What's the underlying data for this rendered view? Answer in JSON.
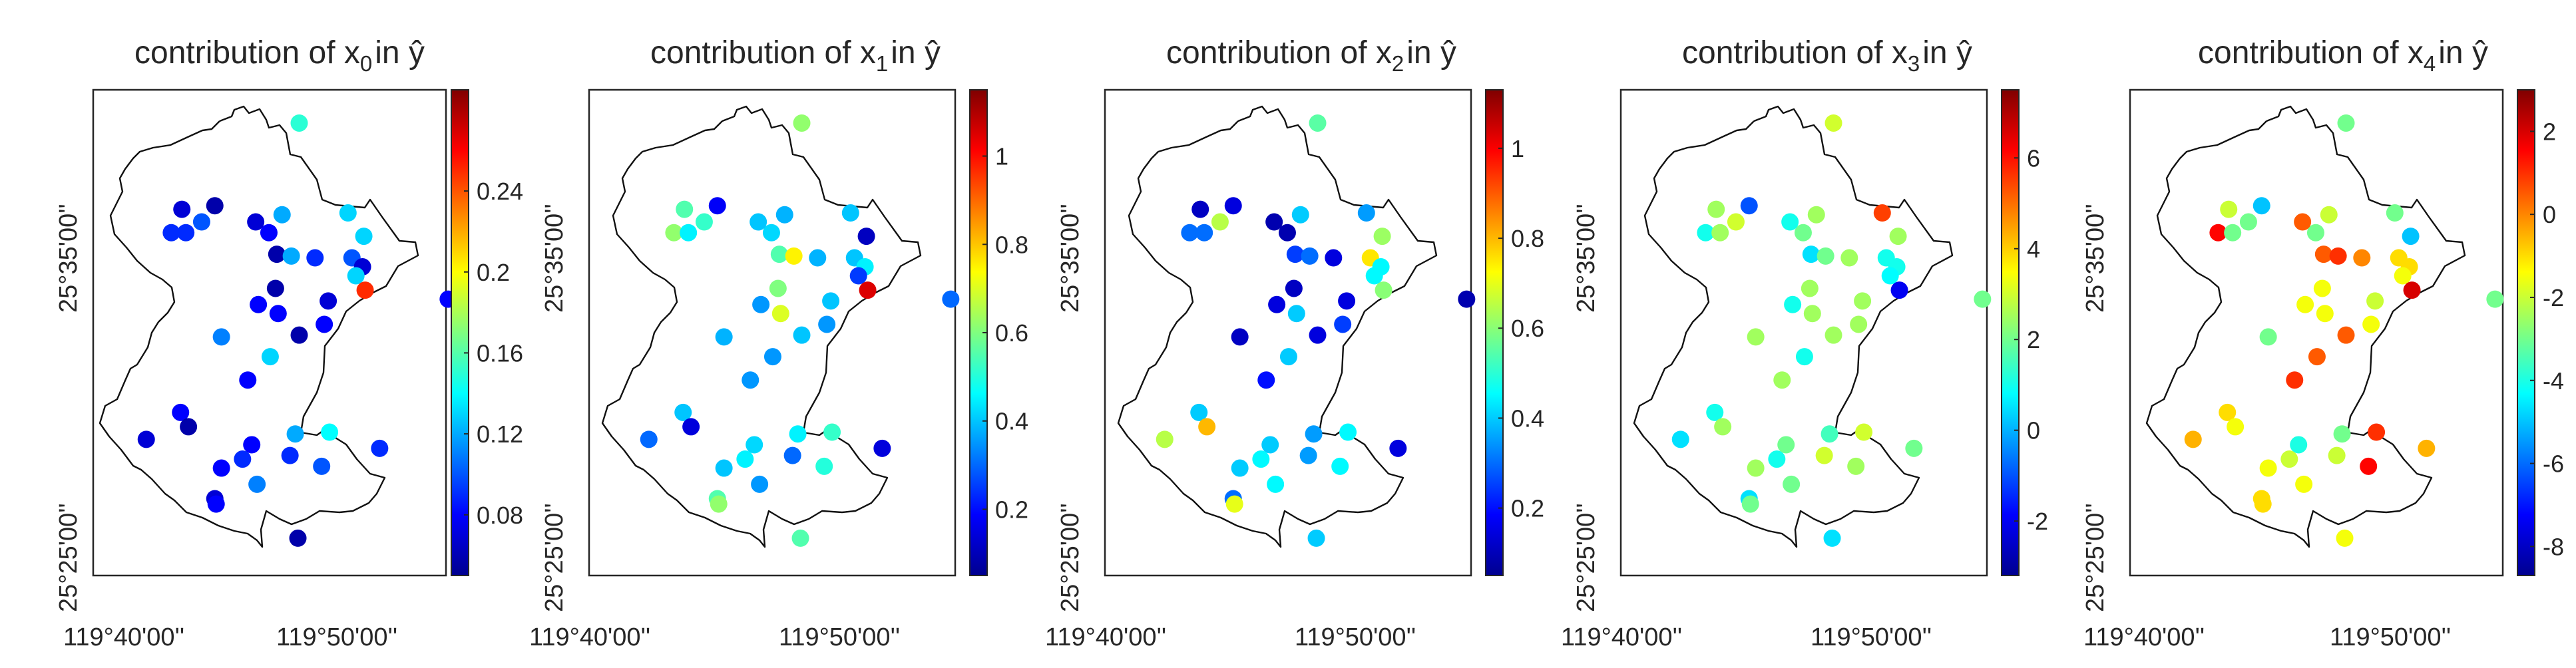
{
  "figure_type": "scatter-map",
  "chart_data": [
    {
      "type": "scatter",
      "title": {
        "prefix": "contribution of x",
        "subscript": "0",
        "suffix": "in ŷ"
      },
      "xticks": [
        "119°40'00''",
        "119°50'00''"
      ],
      "yticks": [
        "25°25'00''",
        "25°35'00''"
      ],
      "colorbar": {
        "min": 0.05,
        "max": 0.29,
        "ticks": [
          "0.08",
          "0.12",
          "0.16",
          "0.2",
          "0.24"
        ],
        "tick_values": [
          0.08,
          0.12,
          0.16,
          0.2,
          0.24
        ]
      },
      "points": {
        "lon": [
          119.775,
          119.701,
          119.711,
          119.678,
          119.686,
          119.689,
          119.762,
          119.812,
          119.752,
          119.824,
          119.742,
          119.758,
          119.769,
          119.787,
          119.815,
          119.823,
          119.818,
          119.825,
          119.888,
          119.757,
          119.744,
          119.716,
          119.759,
          119.775,
          119.794,
          119.797,
          119.753,
          119.736,
          119.685,
          119.691,
          119.659,
          119.739,
          119.732,
          119.772,
          119.716,
          119.711,
          119.798,
          119.792,
          119.836,
          119.768,
          119.743,
          119.774,
          119.712
        ],
        "lat": [
          25.637,
          25.582,
          25.591,
          25.576,
          25.589,
          25.576,
          25.586,
          25.587,
          25.576,
          25.574,
          25.582,
          25.564,
          25.563,
          25.562,
          25.562,
          25.557,
          25.552,
          25.544,
          25.539,
          25.545,
          25.536,
          25.518,
          25.531,
          25.519,
          25.525,
          25.538,
          25.507,
          25.494,
          25.476,
          25.468,
          25.461,
          25.458,
          25.45,
          25.464,
          25.445,
          25.428,
          25.465,
          25.446,
          25.456,
          25.452,
          25.436,
          25.406,
          25.425
        ],
        "values": [
          0.15,
          0.1,
          0.06,
          0.09,
          0.07,
          0.09,
          0.12,
          0.13,
          0.08,
          0.13,
          0.07,
          0.06,
          0.12,
          0.09,
          0.1,
          0.07,
          0.13,
          0.25,
          0.08,
          0.06,
          0.08,
          0.11,
          0.08,
          0.06,
          0.08,
          0.07,
          0.13,
          0.08,
          0.08,
          0.06,
          0.07,
          0.08,
          0.09,
          0.12,
          0.08,
          0.07,
          0.14,
          0.1,
          0.09,
          0.09,
          0.11,
          0.06,
          0.08
        ]
      }
    },
    {
      "type": "scatter",
      "title": {
        "prefix": "contribution of x",
        "subscript": "1",
        "suffix": "in ŷ"
      },
      "xticks": [
        "119°40'00''",
        "119°50'00''"
      ],
      "yticks": [
        "25°25'00''",
        "25°35'00''"
      ],
      "colorbar": {
        "min": 0.05,
        "max": 1.15,
        "ticks": [
          "0.2",
          "0.4",
          "0.6",
          "0.8",
          "1"
        ],
        "tick_values": [
          0.2,
          0.4,
          0.6,
          0.8,
          1.0
        ]
      },
      "points": {
        "lon": [
          119.775,
          119.701,
          119.711,
          119.678,
          119.686,
          119.689,
          119.762,
          119.812,
          119.752,
          119.824,
          119.742,
          119.758,
          119.769,
          119.787,
          119.815,
          119.823,
          119.818,
          119.825,
          119.888,
          119.757,
          119.744,
          119.716,
          119.759,
          119.775,
          119.794,
          119.797,
          119.753,
          119.736,
          119.685,
          119.691,
          119.659,
          119.739,
          119.732,
          119.772,
          119.716,
          119.711,
          119.798,
          119.792,
          119.836,
          119.768,
          119.743,
          119.774,
          119.712
        ],
        "lat": [
          25.637,
          25.582,
          25.591,
          25.576,
          25.589,
          25.576,
          25.586,
          25.587,
          25.576,
          25.574,
          25.582,
          25.564,
          25.563,
          25.562,
          25.562,
          25.557,
          25.552,
          25.544,
          25.539,
          25.545,
          25.536,
          25.518,
          25.531,
          25.519,
          25.525,
          25.538,
          25.507,
          25.494,
          25.476,
          25.468,
          25.461,
          25.458,
          25.45,
          25.464,
          25.445,
          25.428,
          25.465,
          25.446,
          25.456,
          25.452,
          25.436,
          25.406,
          25.425
        ],
        "values": [
          0.62,
          0.52,
          0.18,
          0.62,
          0.55,
          0.45,
          0.38,
          0.4,
          0.42,
          0.12,
          0.4,
          0.55,
          0.75,
          0.38,
          0.4,
          0.45,
          0.25,
          1.05,
          0.3,
          0.6,
          0.35,
          0.38,
          0.7,
          0.4,
          0.35,
          0.4,
          0.35,
          0.35,
          0.4,
          0.15,
          0.3,
          0.42,
          0.45,
          0.45,
          0.4,
          0.55,
          0.52,
          0.5,
          0.15,
          0.3,
          0.35,
          0.55,
          0.62
        ]
      }
    },
    {
      "type": "scatter",
      "title": {
        "prefix": "contribution of x",
        "subscript": "2",
        "suffix": "in ŷ"
      },
      "xticks": [
        "119°40'00''",
        "119°50'00''"
      ],
      "yticks": [
        "25°25'00''",
        "25°35'00''"
      ],
      "colorbar": {
        "min": 0.05,
        "max": 1.13,
        "ticks": [
          "0.2",
          "0.4",
          "0.6",
          "0.8",
          "1"
        ],
        "tick_values": [
          0.2,
          0.4,
          0.6,
          0.8,
          1.0
        ]
      },
      "points": {
        "lon": [
          119.775,
          119.701,
          119.711,
          119.678,
          119.686,
          119.689,
          119.762,
          119.812,
          119.752,
          119.824,
          119.742,
          119.758,
          119.769,
          119.787,
          119.815,
          119.823,
          119.818,
          119.825,
          119.888,
          119.757,
          119.744,
          119.716,
          119.759,
          119.775,
          119.794,
          119.797,
          119.753,
          119.736,
          119.685,
          119.691,
          119.659,
          119.739,
          119.732,
          119.772,
          119.716,
          119.711,
          119.798,
          119.792,
          119.836,
          119.768,
          119.743,
          119.774,
          119.712
        ],
        "lat": [
          25.637,
          25.582,
          25.591,
          25.576,
          25.589,
          25.576,
          25.586,
          25.587,
          25.576,
          25.574,
          25.582,
          25.564,
          25.563,
          25.562,
          25.562,
          25.557,
          25.552,
          25.544,
          25.539,
          25.545,
          25.536,
          25.518,
          25.531,
          25.519,
          25.525,
          25.538,
          25.507,
          25.494,
          25.476,
          25.468,
          25.461,
          25.458,
          25.45,
          25.464,
          25.445,
          25.428,
          25.465,
          25.446,
          25.456,
          25.452,
          25.436,
          25.406,
          25.425
        ],
        "values": [
          0.55,
          0.65,
          0.15,
          0.3,
          0.12,
          0.3,
          0.4,
          0.35,
          0.1,
          0.62,
          0.1,
          0.25,
          0.3,
          0.15,
          0.75,
          0.45,
          0.45,
          0.6,
          0.1,
          0.12,
          0.15,
          0.12,
          0.4,
          0.15,
          0.25,
          0.15,
          0.4,
          0.2,
          0.4,
          0.8,
          0.65,
          0.4,
          0.45,
          0.35,
          0.4,
          0.3,
          0.45,
          0.45,
          0.15,
          0.35,
          0.45,
          0.4,
          0.7
        ]
      }
    },
    {
      "type": "scatter",
      "title": {
        "prefix": "contribution of x",
        "subscript": "3",
        "suffix": "in ŷ"
      },
      "xticks": [
        "119°40'00''",
        "119°50'00''"
      ],
      "yticks": [
        "25°25'00''",
        "25°35'00''"
      ],
      "colorbar": {
        "min": -3.2,
        "max": 7.5,
        "ticks": [
          "-2",
          "0",
          "2",
          "4",
          "6"
        ],
        "tick_values": [
          -2,
          0,
          2,
          4,
          6
        ]
      },
      "points": {
        "lon": [
          119.775,
          119.701,
          119.711,
          119.678,
          119.686,
          119.689,
          119.762,
          119.812,
          119.752,
          119.824,
          119.742,
          119.758,
          119.769,
          119.787,
          119.815,
          119.823,
          119.818,
          119.825,
          119.888,
          119.757,
          119.744,
          119.716,
          119.759,
          119.775,
          119.794,
          119.797,
          119.753,
          119.736,
          119.685,
          119.691,
          119.659,
          119.739,
          119.732,
          119.772,
          119.716,
          119.711,
          119.798,
          119.792,
          119.836,
          119.768,
          119.743,
          119.774,
          119.712
        ],
        "lat": [
          25.637,
          25.582,
          25.591,
          25.576,
          25.589,
          25.576,
          25.586,
          25.587,
          25.576,
          25.574,
          25.582,
          25.564,
          25.563,
          25.562,
          25.562,
          25.557,
          25.552,
          25.544,
          25.539,
          25.545,
          25.536,
          25.518,
          25.531,
          25.519,
          25.525,
          25.538,
          25.507,
          25.494,
          25.476,
          25.468,
          25.461,
          25.458,
          25.45,
          25.464,
          25.445,
          25.428,
          25.465,
          25.446,
          25.456,
          25.452,
          25.436,
          25.406,
          25.425
        ],
        "values": [
          3.0,
          3.0,
          -1.0,
          1.0,
          2.5,
          2.5,
          2.5,
          5.5,
          2.0,
          2.5,
          1.0,
          0.5,
          2.0,
          2.5,
          1.0,
          1.0,
          0.8,
          -2.0,
          2.0,
          2.5,
          1.0,
          2.5,
          2.5,
          2.5,
          2.5,
          2.5,
          1.0,
          2.5,
          1.0,
          2.5,
          0.5,
          2.0,
          1.0,
          1.5,
          2.5,
          0.5,
          3.0,
          2.5,
          2.0,
          3.0,
          2.0,
          0.5,
          2.0
        ]
      }
    },
    {
      "type": "scatter",
      "title": {
        "prefix": "contribution of x",
        "subscript": "4",
        "suffix": "in ŷ"
      },
      "xticks": [
        "119°40'00''",
        "119°50'00''"
      ],
      "yticks": [
        "25°25'00''",
        "25°35'00''"
      ],
      "colorbar": {
        "min": -8.7,
        "max": 3.0,
        "ticks": [
          "-8",
          "-6",
          "-4",
          "-2",
          "0",
          "2"
        ],
        "tick_values": [
          -8,
          -6,
          -4,
          -2,
          0,
          2
        ]
      },
      "points": {
        "lon": [
          119.775,
          119.701,
          119.711,
          119.678,
          119.686,
          119.689,
          119.762,
          119.812,
          119.752,
          119.824,
          119.742,
          119.758,
          119.769,
          119.787,
          119.815,
          119.823,
          119.818,
          119.825,
          119.888,
          119.757,
          119.744,
          119.716,
          119.759,
          119.775,
          119.794,
          119.797,
          119.753,
          119.736,
          119.685,
          119.691,
          119.659,
          119.739,
          119.732,
          119.772,
          119.716,
          119.711,
          119.798,
          119.792,
          119.836,
          119.768,
          119.743,
          119.774,
          119.712
        ],
        "lat": [
          25.637,
          25.582,
          25.591,
          25.576,
          25.589,
          25.576,
          25.586,
          25.587,
          25.576,
          25.574,
          25.582,
          25.564,
          25.563,
          25.562,
          25.562,
          25.557,
          25.552,
          25.544,
          25.539,
          25.545,
          25.536,
          25.518,
          25.531,
          25.519,
          25.525,
          25.538,
          25.507,
          25.494,
          25.476,
          25.468,
          25.461,
          25.458,
          25.45,
          25.464,
          25.445,
          25.428,
          25.465,
          25.446,
          25.456,
          25.452,
          25.436,
          25.406,
          25.425
        ],
        "values": [
          -3.0,
          -3.0,
          -5.0,
          1.5,
          -2.0,
          -3.0,
          -2.0,
          -3.0,
          -3.0,
          -5.0,
          0.5,
          0.5,
          1.0,
          0.0,
          -1.0,
          -1.0,
          -1.5,
          2.0,
          -3.0,
          -1.5,
          -1.5,
          -3.0,
          -1.5,
          0.5,
          -1.5,
          -2.0,
          0.5,
          1.0,
          -1.0,
          -1.5,
          -0.5,
          -4.0,
          -2.0,
          -3.0,
          -1.5,
          -1.0,
          1.0,
          1.5,
          -0.5,
          -2.0,
          -1.5,
          -1.5,
          -1.0
        ]
      }
    }
  ]
}
